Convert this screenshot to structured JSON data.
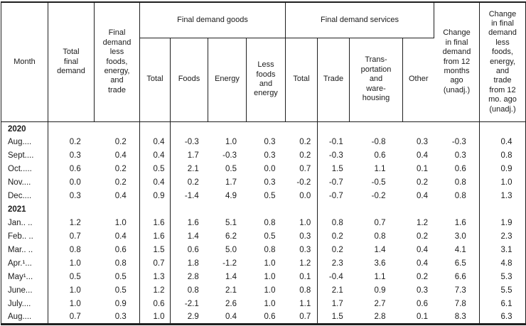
{
  "header": {
    "month": "Month",
    "total_final_demand": "Total\nfinal\ndemand",
    "less_foods_energy_trade": "Final\ndemand\nless\nfoods,\nenergy,\nand\ntrade",
    "goods_group": "Final demand goods",
    "goods_subcols": [
      "Total",
      "Foods",
      "Energy",
      "Less\nfoods\nand\nenergy"
    ],
    "services_group": "Final demand services",
    "services_subcols": [
      "Total",
      "Trade",
      "Trans-\nportation\nand\nware-\nhousing",
      "Other"
    ],
    "change_12mo": "Change\nin final\ndemand\nfrom 12\nmonths\nago\n(unadj.)",
    "change_12mo_less": "Change\nin final\ndemand\nless\nfoods,\nenergy,\nand\ntrade\nfrom 12\nmo. ago\n(unadj.)"
  },
  "body": {
    "sections": [
      {
        "year": "2020",
        "rows": [
          {
            "month": "Aug....",
            "values": [
              "0.2",
              "0.2",
              "0.4",
              "-0.3",
              "1.0",
              "0.3",
              "0.2",
              "-0.1",
              "-0.8",
              "0.3",
              "-0.3",
              "0.4"
            ]
          },
          {
            "month": "Sept....",
            "values": [
              "0.3",
              "0.4",
              "0.4",
              "1.7",
              "-0.3",
              "0.3",
              "0.2",
              "-0.3",
              "0.6",
              "0.4",
              "0.3",
              "0.8"
            ]
          },
          {
            "month": "Oct.....",
            "values": [
              "0.6",
              "0.2",
              "0.5",
              "2.1",
              "0.5",
              "0.0",
              "0.7",
              "1.5",
              "1.1",
              "0.1",
              "0.6",
              "0.9"
            ]
          },
          {
            "month": "Nov....",
            "values": [
              "0.0",
              "0.2",
              "0.4",
              "0.2",
              "1.7",
              "0.3",
              "-0.2",
              "-0.7",
              "-0.5",
              "0.2",
              "0.8",
              "1.0"
            ]
          },
          {
            "month": "Dec....",
            "values": [
              "0.3",
              "0.4",
              "0.9",
              "-1.4",
              "4.9",
              "0.5",
              "0.0",
              "-0.7",
              "-0.2",
              "0.4",
              "0.8",
              "1.3"
            ]
          }
        ]
      },
      {
        "year": "2021",
        "rows": [
          {
            "month": "Jan.. ..",
            "values": [
              "1.2",
              "1.0",
              "1.6",
              "1.6",
              "5.1",
              "0.8",
              "1.0",
              "0.8",
              "0.7",
              "1.2",
              "1.6",
              "1.9"
            ]
          },
          {
            "month": "Feb.. ..",
            "values": [
              "0.7",
              "0.4",
              "1.6",
              "1.4",
              "6.2",
              "0.5",
              "0.3",
              "0.2",
              "0.8",
              "0.2",
              "3.0",
              "2.3"
            ]
          },
          {
            "month": "Mar.. ..",
            "values": [
              "0.8",
              "0.6",
              "1.5",
              "0.6",
              "5.0",
              "0.8",
              "0.3",
              "0.2",
              "1.4",
              "0.4",
              "4.1",
              "3.1"
            ]
          },
          {
            "month": "Apr.¹...",
            "values": [
              "1.0",
              "0.8",
              "0.7",
              "1.8",
              "-1.2",
              "1.0",
              "1.2",
              "2.3",
              "3.6",
              "0.4",
              "6.5",
              "4.8"
            ]
          },
          {
            "month": "May¹...",
            "values": [
              "0.5",
              "0.5",
              "1.3",
              "2.8",
              "1.4",
              "1.0",
              "0.1",
              "-0.4",
              "1.1",
              "0.2",
              "6.6",
              "5.3"
            ]
          },
          {
            "month": "June...",
            "values": [
              "1.0",
              "0.5",
              "1.2",
              "0.8",
              "2.1",
              "1.0",
              "0.8",
              "2.1",
              "0.9",
              "0.3",
              "7.3",
              "5.5"
            ]
          },
          {
            "month": "July....",
            "values": [
              "1.0",
              "0.9",
              "0.6",
              "-2.1",
              "2.6",
              "1.0",
              "1.1",
              "1.7",
              "2.7",
              "0.6",
              "7.8",
              "6.1"
            ]
          },
          {
            "month": "Aug....",
            "values": [
              "0.7",
              "0.3",
              "1.0",
              "2.9",
              "0.4",
              "0.6",
              "0.7",
              "1.5",
              "2.8",
              "0.1",
              "8.3",
              "6.3"
            ]
          }
        ]
      }
    ]
  }
}
